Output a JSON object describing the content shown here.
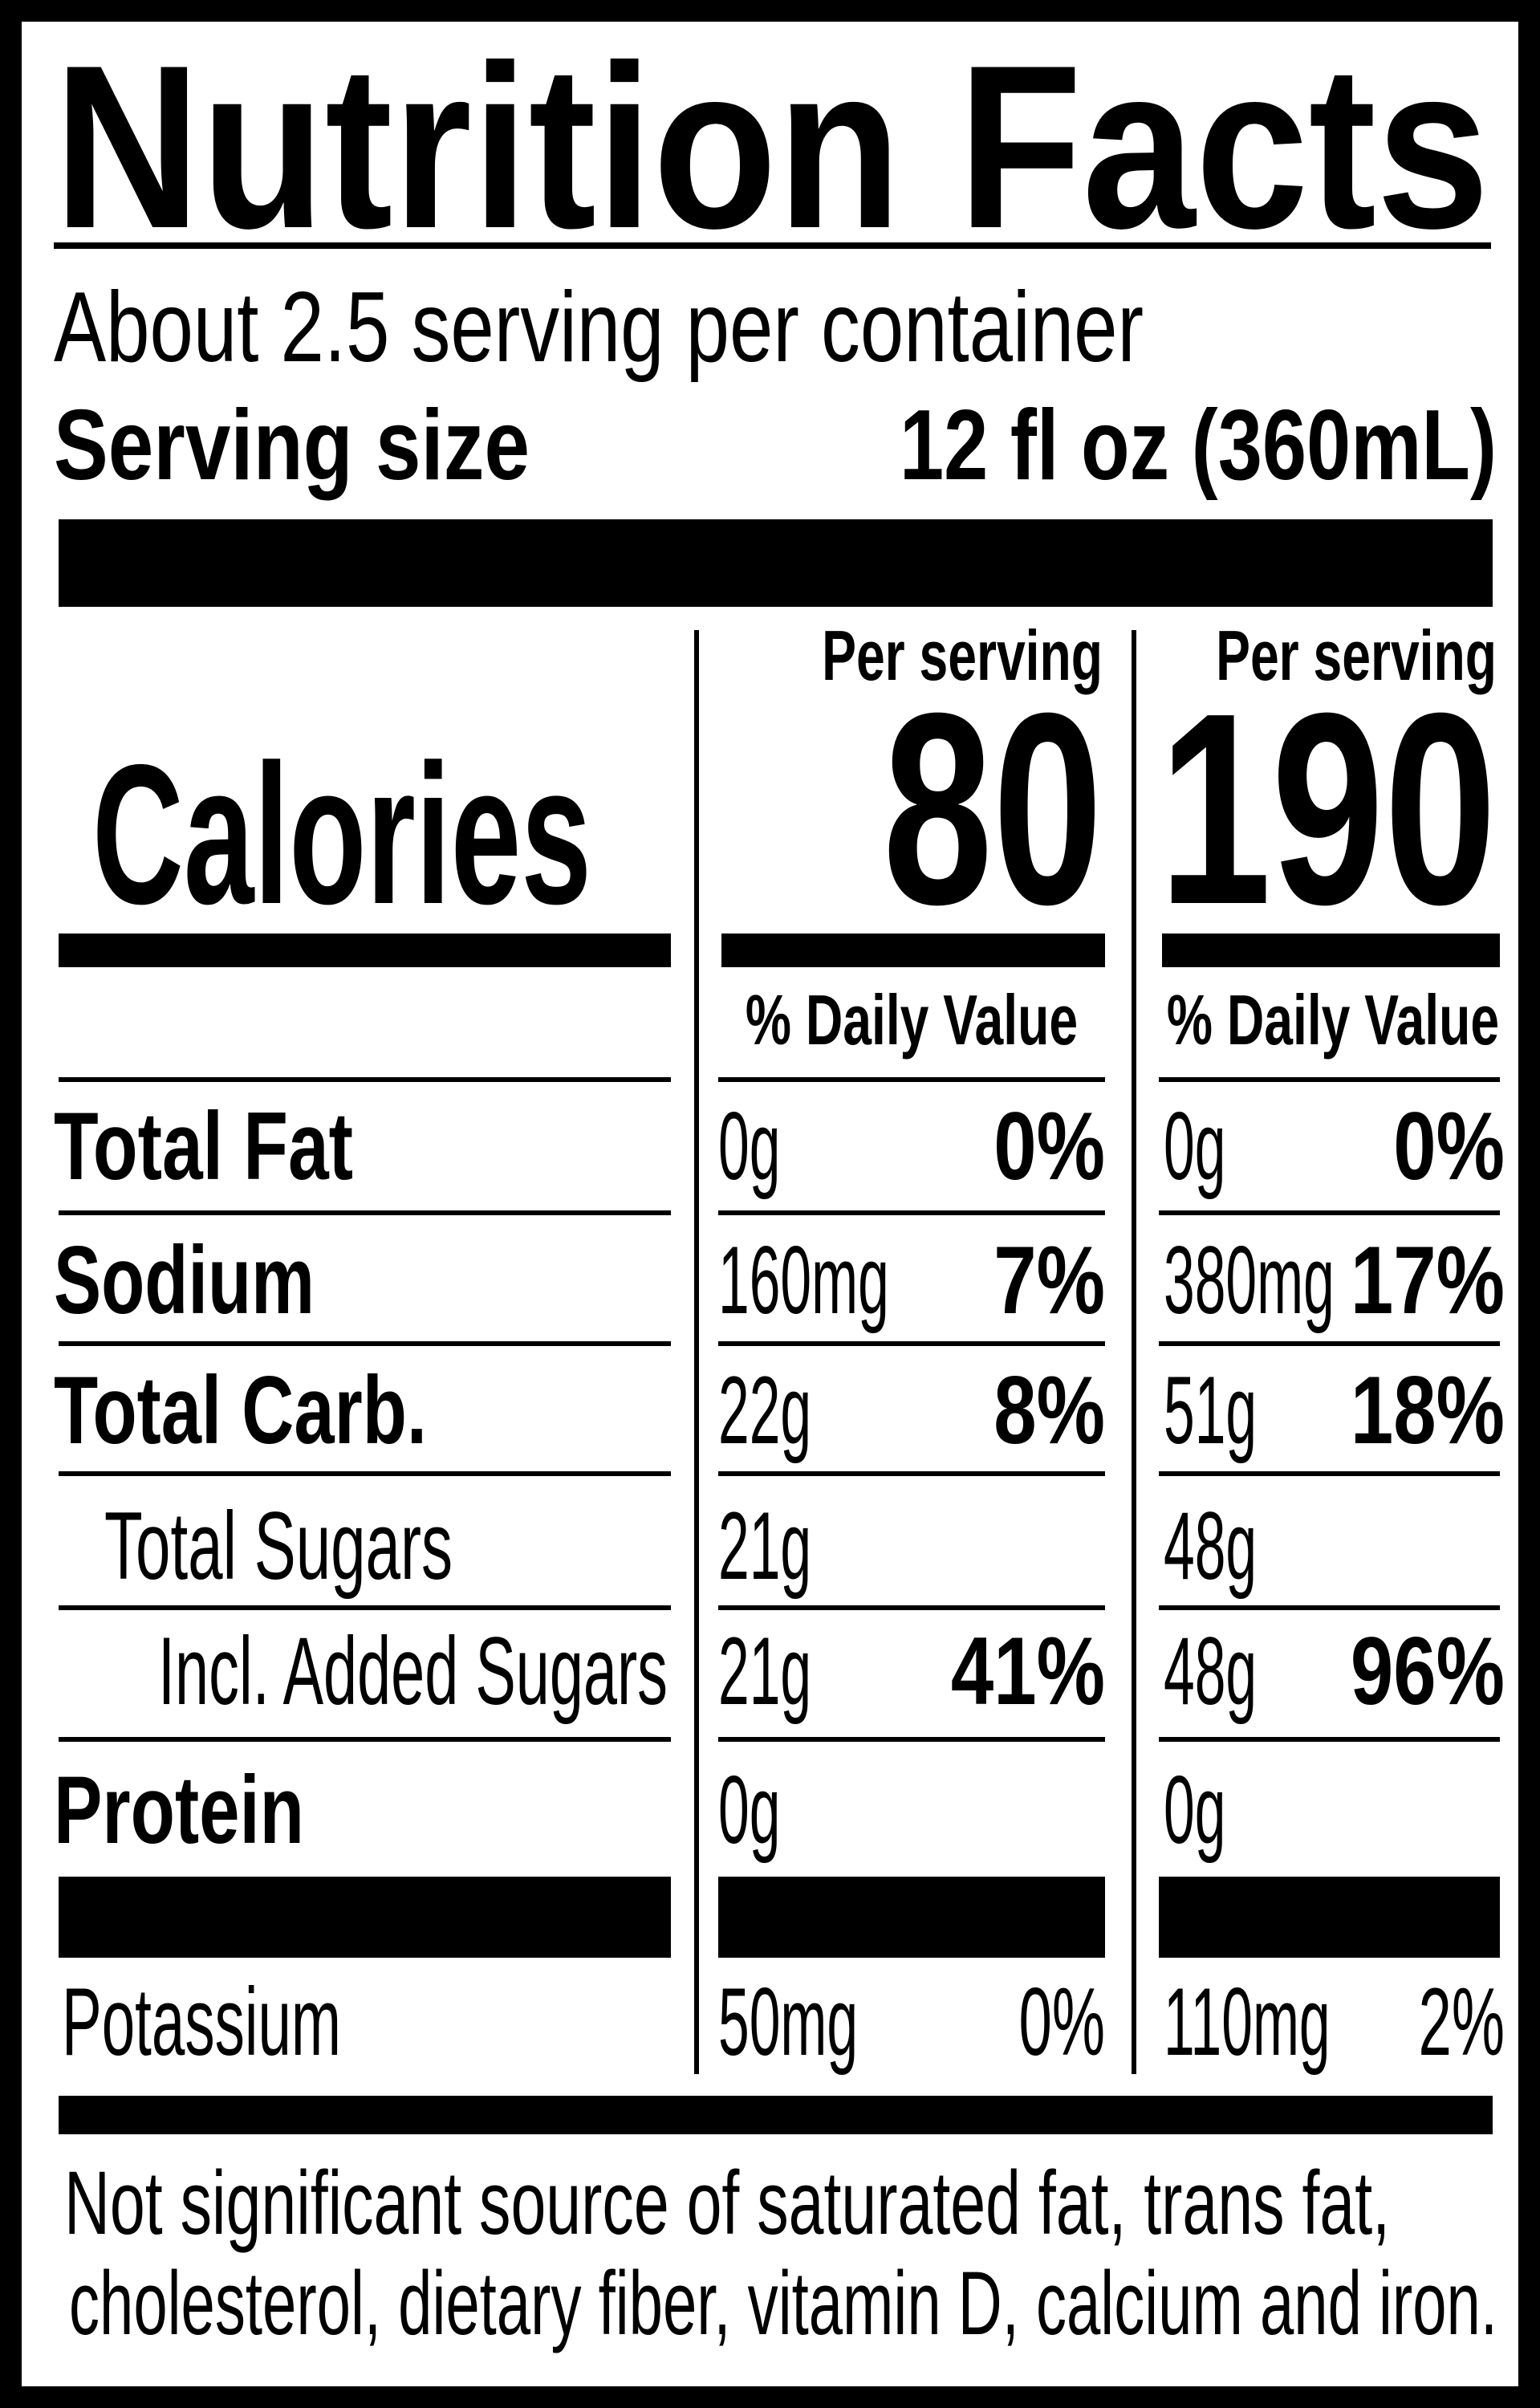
{
  "header": {
    "title": "Nutrition Facts",
    "servings": "About 2.5 serving per container",
    "serving_size_label": "Serving size",
    "serving_size": "12 fl oz (360mL)"
  },
  "calories": {
    "label": "Calories",
    "columns": [
      {
        "heading": "Per serving",
        "value": 80
      },
      {
        "heading": "Per serving",
        "value": 190
      }
    ]
  },
  "daily_value_headings": [
    "% Daily Value",
    "% Daily Value"
  ],
  "nutrients": [
    {
      "name": "Total Fat",
      "columns": [
        {
          "amount": "0g",
          "daily_value": "0%"
        },
        {
          "amount": "0g",
          "daily_value": "0%"
        }
      ]
    },
    {
      "name": "Sodium",
      "columns": [
        {
          "amount": "160mg",
          "daily_value": "7%"
        },
        {
          "amount": "380mg",
          "daily_value": "17%"
        }
      ]
    },
    {
      "name": "Total Carb.",
      "columns": [
        {
          "amount": "22g",
          "daily_value": "8%"
        },
        {
          "amount": "51g",
          "daily_value": "18%"
        }
      ]
    },
    {
      "name": "Total Sugars",
      "columns": [
        {
          "amount": "21g"
        },
        {
          "amount": "48g"
        }
      ]
    },
    {
      "name": "Incl. Added Sugars",
      "columns": [
        {
          "amount": "21g",
          "daily_value": "41%"
        },
        {
          "amount": "48g",
          "daily_value": "96%"
        }
      ]
    },
    {
      "name": "Protein",
      "columns": [
        {
          "amount": "0g"
        },
        {
          "amount": "0g"
        }
      ]
    }
  ],
  "potassium": {
    "name": "Potassium",
    "columns": [
      {
        "amount": "50mg",
        "daily_value": "0%"
      },
      {
        "amount": "110mg",
        "daily_value": "2%"
      }
    ]
  },
  "footnote": [
    "Not significant source of saturated fat, trans fat,",
    "cholesterol, dietary fiber, vitamin D, calcium and iron."
  ]
}
